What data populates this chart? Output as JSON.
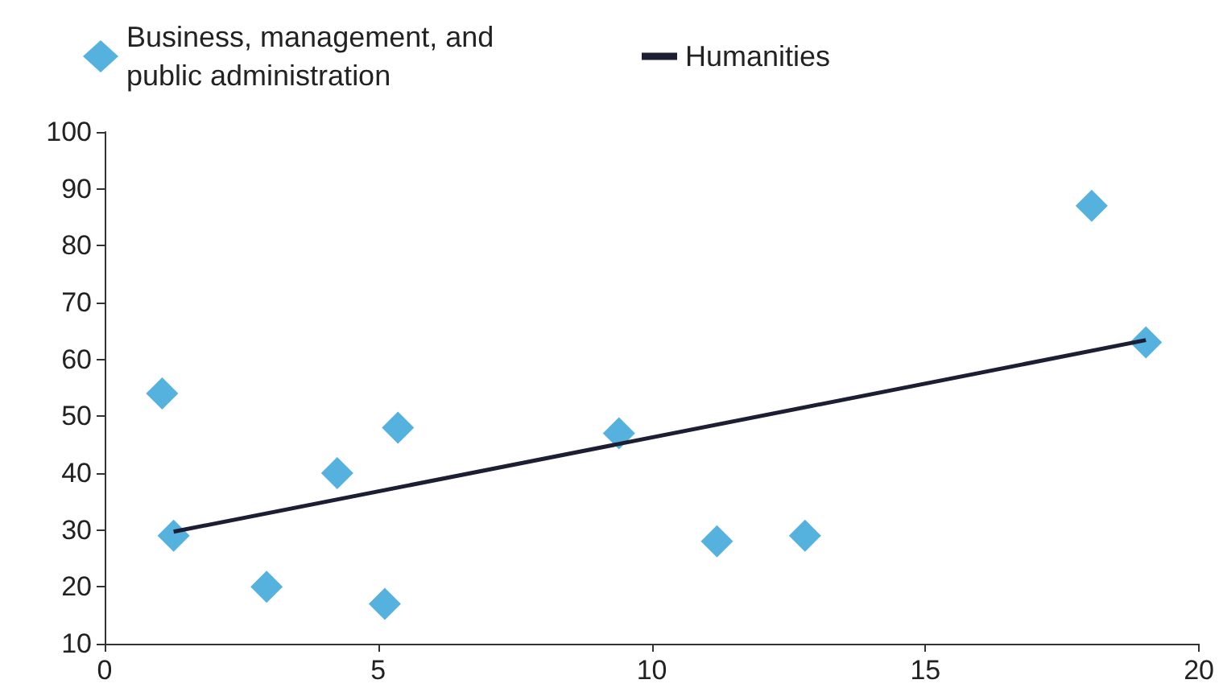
{
  "chart_data": {
    "type": "scatter",
    "marker": "diamond",
    "legend": "top",
    "grid": false,
    "xlim": [
      0,
      20
    ],
    "xticks": [
      0,
      5,
      10,
      15,
      20
    ],
    "ylim": [
      10,
      100
    ],
    "yticks": [
      10,
      20,
      30,
      40,
      50,
      60,
      70,
      80,
      90,
      100
    ],
    "series": [
      {
        "name": "Business, management, and public administration",
        "color": "#2a9fd6",
        "x": [
          1.05,
          1.26,
          2.96,
          4.25,
          5.12,
          5.36,
          9.4,
          11.19,
          12.8,
          18.04,
          19.03
        ],
        "values": [
          54,
          29,
          20,
          40,
          17,
          48,
          47,
          28,
          29,
          87,
          63
        ]
      },
      {
        "name": "Humanities",
        "type": "line",
        "marker": "none",
        "color": "#1c1f33",
        "x": [
          1.26,
          19.03
        ],
        "values": [
          29.7,
          63.4
        ]
      }
    ]
  }
}
